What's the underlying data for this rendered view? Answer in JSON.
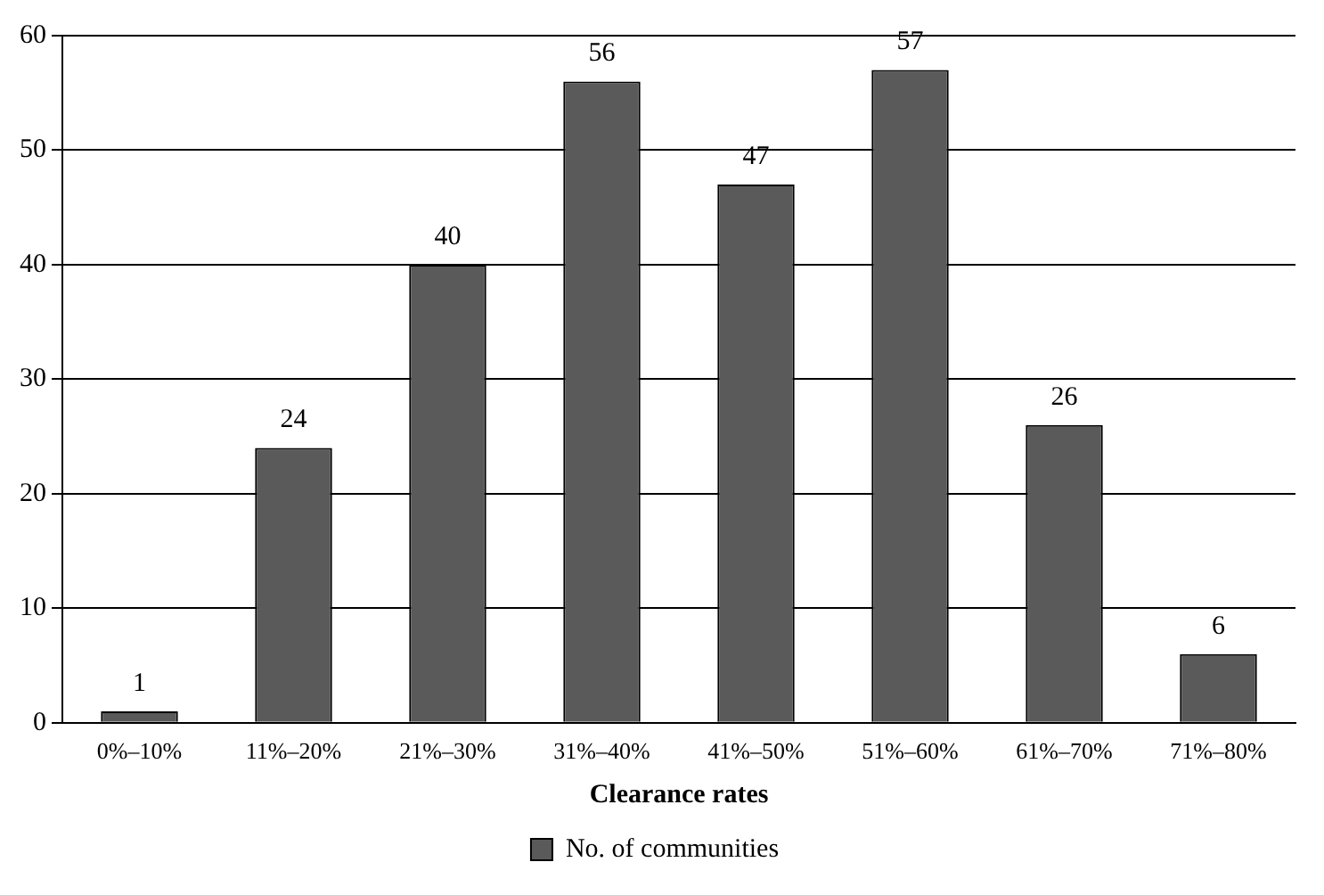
{
  "chart_data": {
    "type": "bar",
    "xlabel": "Clearance rates",
    "categories": [
      "0%–10%",
      "11%–20%",
      "21%–30%",
      "31%–40%",
      "41%–50%",
      "51%–60%",
      "61%–70%",
      "71%–80%"
    ],
    "series": [
      {
        "name": "No. of communities",
        "color": "#5a5a5a",
        "values": [
          1,
          24,
          40,
          56,
          47,
          57,
          26,
          6
        ]
      }
    ],
    "ylim": [
      0,
      60
    ],
    "yticks": [
      0,
      10,
      20,
      30,
      40,
      50,
      60
    ],
    "grid": "y",
    "legend": "bottom",
    "data_labels": true
  }
}
